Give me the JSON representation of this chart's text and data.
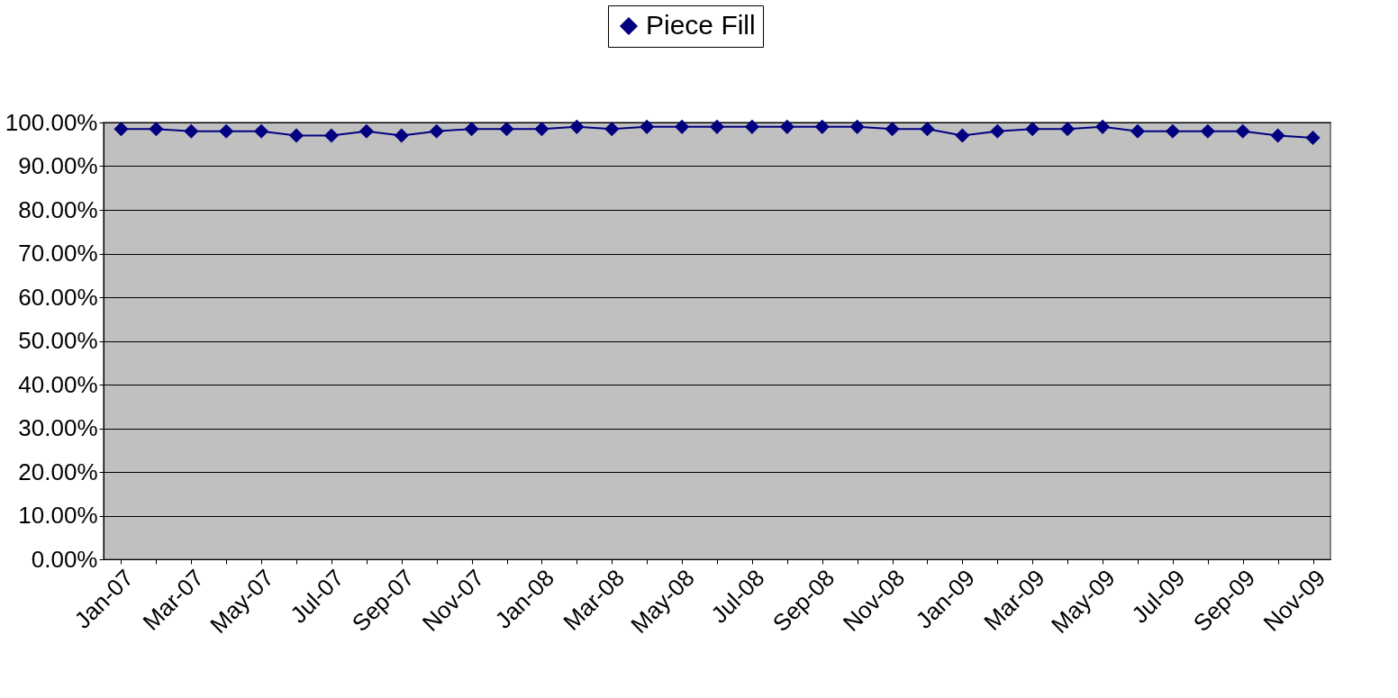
{
  "chart_data": {
    "type": "line",
    "categories": [
      "Jan-07",
      null,
      "Mar-07",
      null,
      "May-07",
      null,
      "Jul-07",
      null,
      "Sep-07",
      null,
      "Nov-07",
      null,
      "Jan-08",
      null,
      "Mar-08",
      null,
      "May-08",
      null,
      "Jul-08",
      null,
      "Sep-08",
      null,
      "Nov-08",
      null,
      "Jan-09",
      null,
      "Mar-09",
      null,
      "May-09",
      null,
      "Jul-09",
      null,
      "Sep-09",
      null,
      "Nov-09"
    ],
    "series": [
      {
        "name": "Piece Fill",
        "color": "#000080",
        "values": [
          98.5,
          98.5,
          98,
          98,
          98,
          97,
          97,
          98,
          97,
          98,
          98.5,
          98.5,
          98.5,
          99,
          98.5,
          99,
          99,
          99,
          99,
          99,
          99,
          99,
          98.5,
          98.5,
          97,
          98,
          98.5,
          98.5,
          99,
          98,
          98,
          98,
          98,
          97,
          96.5
        ]
      }
    ],
    "ylim": [
      0,
      100
    ],
    "yticks": [
      {
        "value": 0,
        "label": "0.00%"
      },
      {
        "value": 10,
        "label": "10.00%"
      },
      {
        "value": 20,
        "label": "20.00%"
      },
      {
        "value": 30,
        "label": "30.00%"
      },
      {
        "value": 40,
        "label": "40.00%"
      },
      {
        "value": 50,
        "label": "50.00%"
      },
      {
        "value": 60,
        "label": "60.00%"
      },
      {
        "value": 70,
        "label": "70.00%"
      },
      {
        "value": 80,
        "label": "80.00%"
      },
      {
        "value": 90,
        "label": "90.00%"
      },
      {
        "value": 100,
        "label": "100.00%"
      }
    ],
    "grid": "y",
    "legend": "top",
    "marker": "diamond",
    "line_style": "solid"
  }
}
